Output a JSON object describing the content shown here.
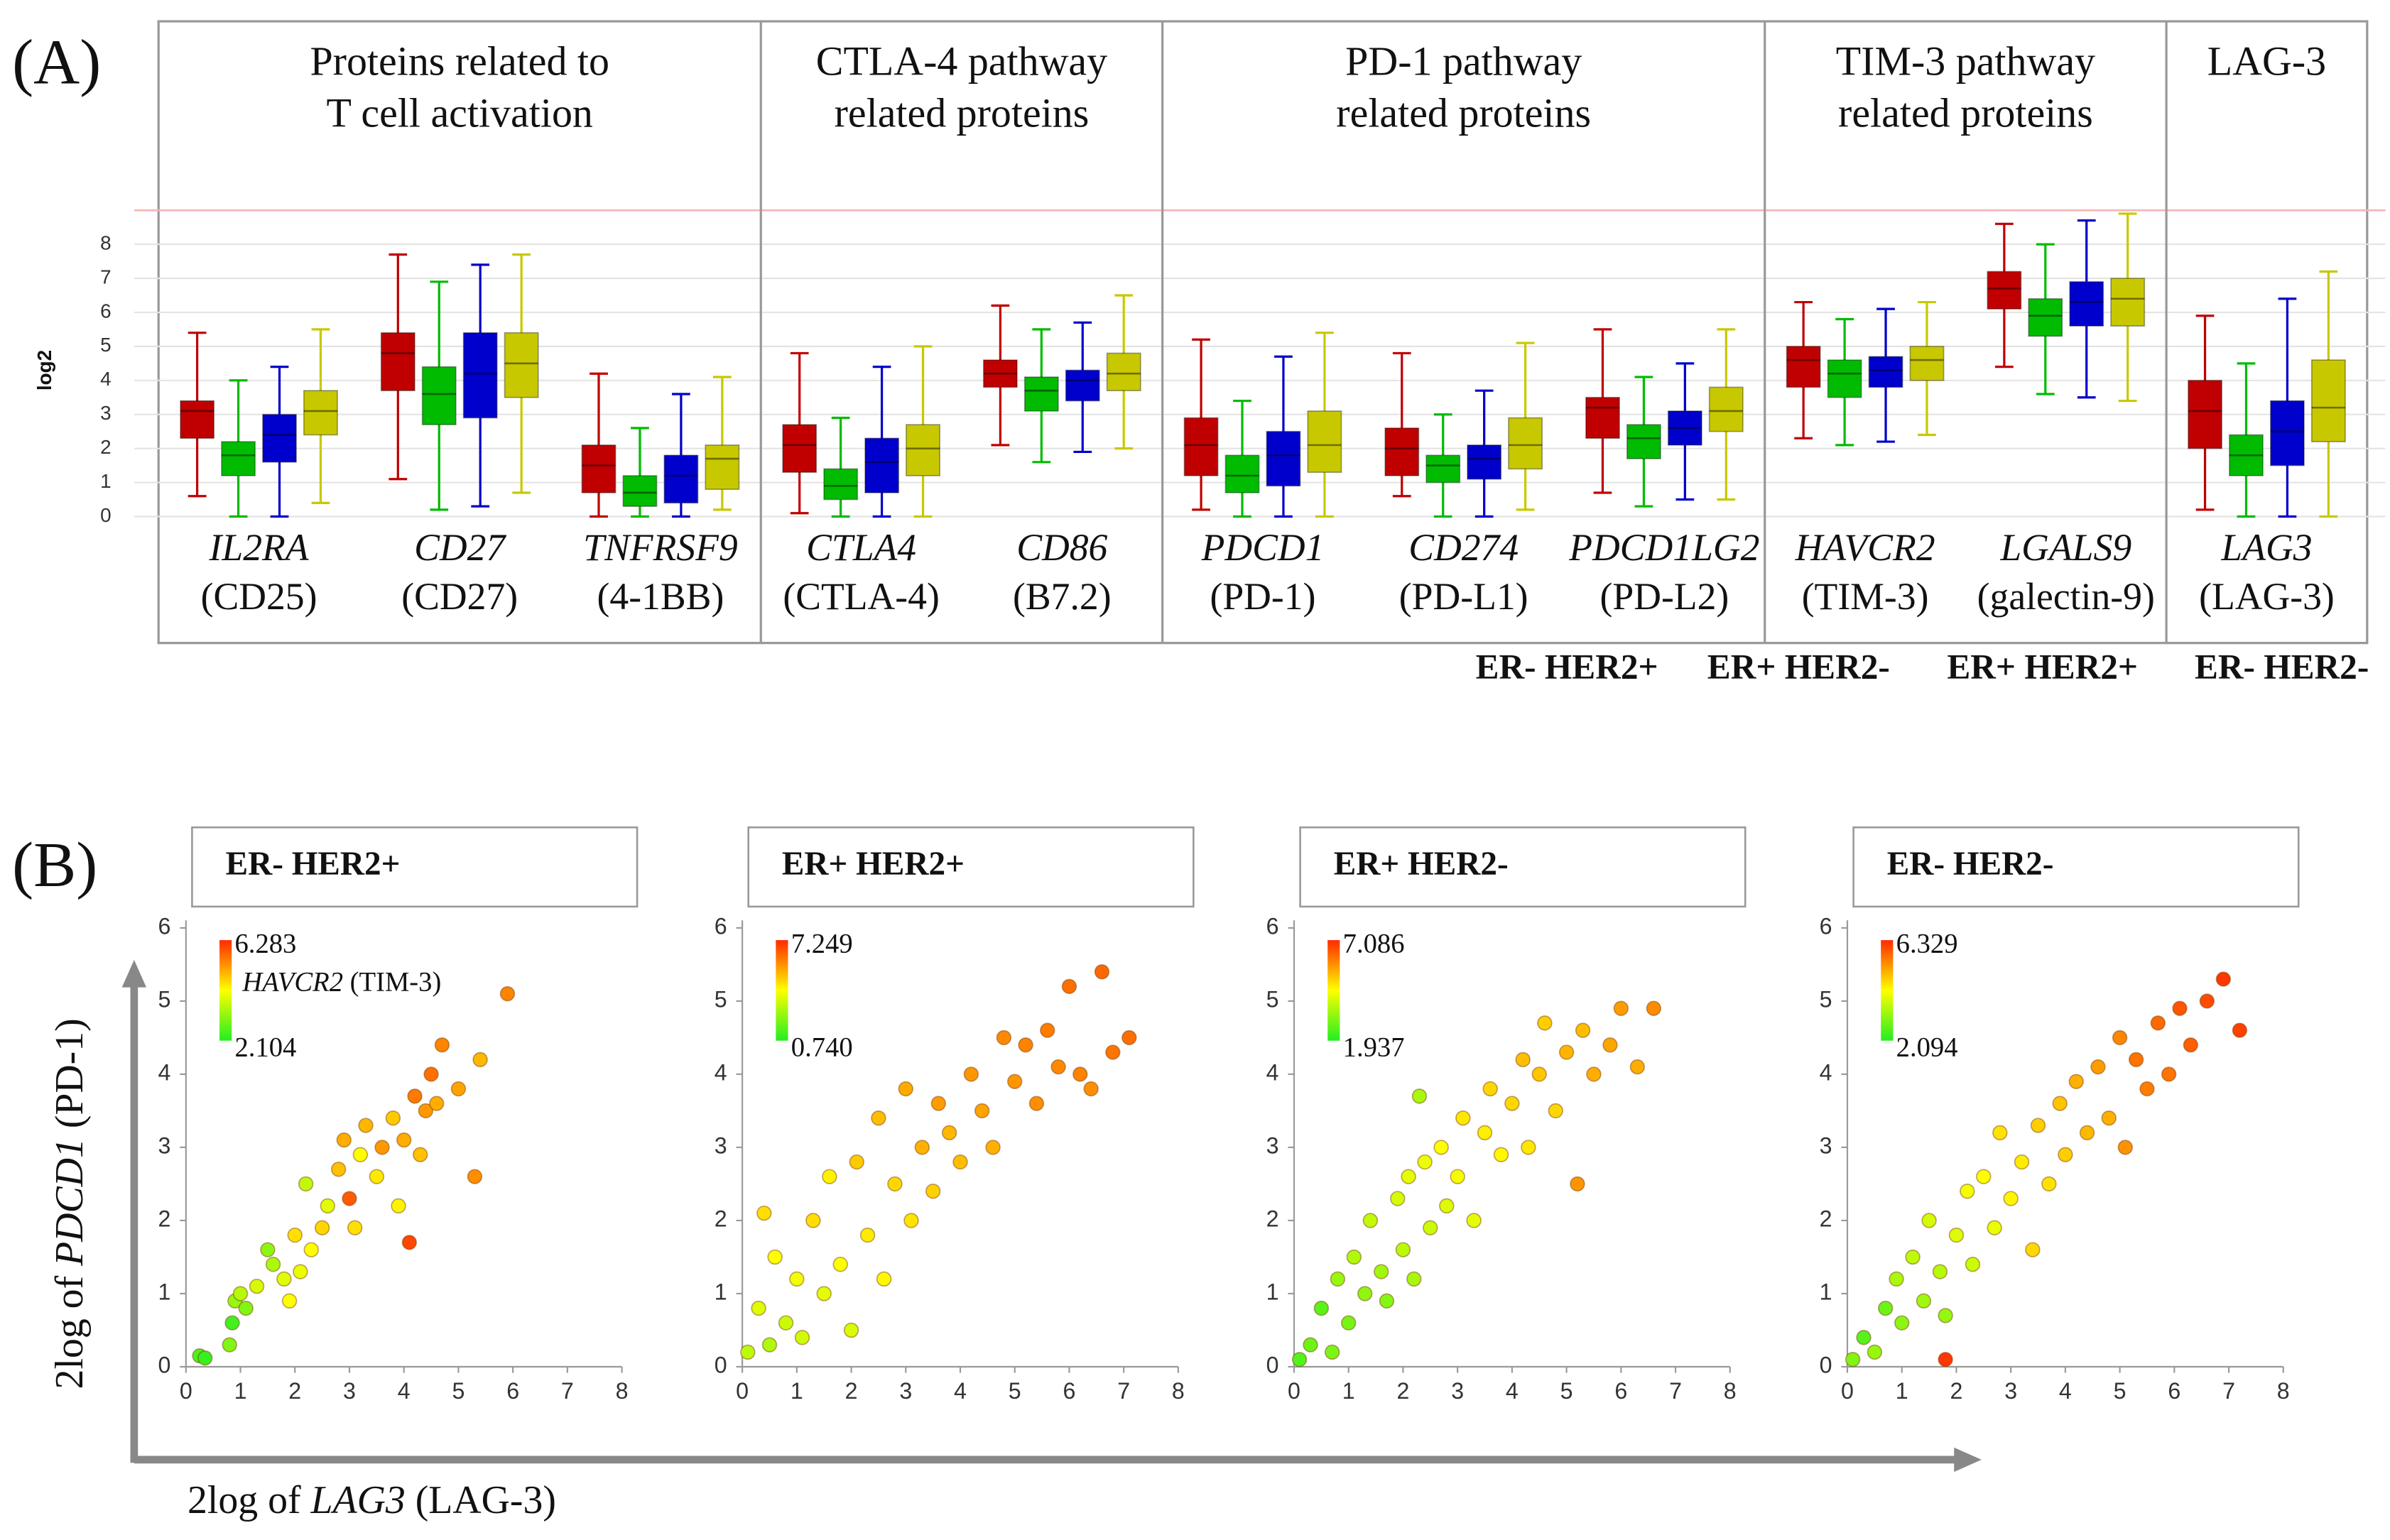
{
  "panel_labels": [
    "(A)",
    "(B)"
  ],
  "shared_axes": {
    "y_label": [
      "2log of ",
      "PDCD1",
      " (PD-1)"
    ],
    "x_label": [
      "2log of ",
      "LAG3",
      " (LAG-3)"
    ]
  },
  "chart_data": [
    {
      "type": "box",
      "y_label": "log2",
      "ylim": [
        0,
        9
      ],
      "yticks": [
        0,
        1,
        2,
        3,
        4,
        5,
        6,
        7,
        8
      ],
      "grid": true,
      "groups": [
        {
          "title": [
            "Proteins related to",
            "T cell activation"
          ],
          "genes": [
            "IL2RA",
            "CD27",
            "TNFRSF9"
          ],
          "proteins": [
            "(CD25)",
            "(CD27)",
            "(4-1BB)"
          ]
        },
        {
          "title": [
            "CTLA-4 pathway",
            "related proteins"
          ],
          "genes": [
            "CTLA4",
            "CD86"
          ],
          "proteins": [
            "(CTLA-4)",
            "(B7.2)"
          ]
        },
        {
          "title": [
            "PD-1 pathway",
            "related proteins"
          ],
          "genes": [
            "PDCD1",
            "CD274",
            "PDCD1LG2"
          ],
          "proteins": [
            "(PD-1)",
            "(PD-L1)",
            "(PD-L2)"
          ]
        },
        {
          "title": [
            "TIM-3 pathway",
            "related proteins"
          ],
          "genes": [
            "HAVCR2",
            "LGALS9"
          ],
          "proteins": [
            "(TIM-3)",
            "(galectin-9)"
          ]
        },
        {
          "title": [
            "LAG-3"
          ],
          "genes": [
            "LAG3"
          ],
          "proteins": [
            "(LAG-3)"
          ]
        }
      ],
      "series": [
        {
          "name": "ER- HER2+",
          "color": "#c00000",
          "values": [
            [
              0.6,
              2.3,
              3.1,
              3.4,
              5.4
            ],
            [
              1.1,
              3.7,
              4.8,
              5.4,
              7.7
            ],
            [
              0,
              0.7,
              1.5,
              2.1,
              4.2
            ],
            [
              0.1,
              1.3,
              2.1,
              2.7,
              4.8
            ],
            [
              2.1,
              3.8,
              4.2,
              4.6,
              6.2
            ],
            [
              0.2,
              1.2,
              2.1,
              2.9,
              5.2
            ],
            [
              0.6,
              1.2,
              2.0,
              2.6,
              4.8
            ],
            [
              0.7,
              2.3,
              3.2,
              3.5,
              5.5
            ],
            [
              2.3,
              3.8,
              4.6,
              5.0,
              6.3
            ],
            [
              4.4,
              6.1,
              6.7,
              7.2,
              8.6
            ],
            [
              0.2,
              2.0,
              3.1,
              4.0,
              5.9
            ]
          ]
        },
        {
          "name": "ER+ HER2-",
          "color": "#00bb00",
          "values": [
            [
              0,
              1.2,
              1.8,
              2.2,
              4.0
            ],
            [
              0.2,
              2.7,
              3.6,
              4.4,
              6.9
            ],
            [
              0,
              0.3,
              0.7,
              1.2,
              2.6
            ],
            [
              0,
              0.5,
              0.9,
              1.4,
              2.9
            ],
            [
              1.6,
              3.1,
              3.7,
              4.1,
              5.5
            ],
            [
              0,
              0.7,
              1.2,
              1.8,
              3.4
            ],
            [
              0,
              1.0,
              1.5,
              1.8,
              3.0
            ],
            [
              0.3,
              1.7,
              2.3,
              2.7,
              4.1
            ],
            [
              2.1,
              3.5,
              4.2,
              4.6,
              5.8
            ],
            [
              3.6,
              5.3,
              5.9,
              6.4,
              8.0
            ],
            [
              0,
              1.2,
              1.8,
              2.4,
              4.5
            ]
          ]
        },
        {
          "name": "ER+ HER2+",
          "color": "#0000cc",
          "values": [
            [
              0,
              1.6,
              2.4,
              3.0,
              4.4
            ],
            [
              0.3,
              2.9,
              4.2,
              5.4,
              7.4
            ],
            [
              0,
              0.4,
              1.2,
              1.8,
              3.6
            ],
            [
              0,
              0.7,
              1.6,
              2.3,
              4.4
            ],
            [
              1.9,
              3.4,
              4.0,
              4.3,
              5.7
            ],
            [
              0,
              0.9,
              1.8,
              2.5,
              4.7
            ],
            [
              0,
              1.1,
              1.7,
              2.1,
              3.7
            ],
            [
              0.5,
              2.1,
              2.6,
              3.1,
              4.5
            ],
            [
              2.2,
              3.8,
              4.3,
              4.7,
              6.1
            ],
            [
              3.5,
              5.6,
              6.3,
              6.9,
              8.7
            ],
            [
              0,
              1.5,
              2.5,
              3.4,
              6.4
            ]
          ]
        },
        {
          "name": "ER- HER2-",
          "color": "#c8c800",
          "values": [
            [
              0.4,
              2.4,
              3.1,
              3.7,
              5.5
            ],
            [
              0.7,
              3.5,
              4.5,
              5.4,
              7.7
            ],
            [
              0.2,
              0.8,
              1.7,
              2.1,
              4.1
            ],
            [
              0,
              1.2,
              2.0,
              2.7,
              5.0
            ],
            [
              2.0,
              3.7,
              4.2,
              4.8,
              6.5
            ],
            [
              0,
              1.3,
              2.1,
              3.1,
              5.4
            ],
            [
              0.2,
              1.4,
              2.1,
              2.9,
              5.1
            ],
            [
              0.5,
              2.5,
              3.1,
              3.8,
              5.5
            ],
            [
              2.4,
              4.0,
              4.6,
              5.0,
              6.3
            ],
            [
              3.4,
              5.6,
              6.4,
              7.0,
              8.9
            ],
            [
              0,
              2.2,
              3.2,
              4.6,
              7.2
            ]
          ]
        }
      ]
    },
    {
      "type": "scatter",
      "title": "ER- HER2+",
      "xlim": [
        0,
        8
      ],
      "xticks": [
        0,
        1,
        2,
        3,
        4,
        5,
        6,
        7,
        8
      ],
      "ylim": [
        0,
        6
      ],
      "yticks": [
        0,
        1,
        2,
        3,
        4,
        5,
        6
      ],
      "colormap": [
        "#22ee22",
        "#ffff00",
        "#ff2a00"
      ],
      "colorbar": {
        "max": 6.283,
        "min": 2.104
      },
      "colorbar_label": [
        "HAVCR2",
        " (TIM-3)"
      ],
      "x": [
        0.25,
        0.35,
        0.8,
        0.85,
        0.9,
        1.0,
        1.1,
        1.3,
        1.5,
        1.6,
        1.8,
        1.9,
        2.0,
        2.1,
        2.2,
        2.3,
        2.5,
        2.6,
        2.8,
        2.9,
        3.0,
        3.1,
        3.2,
        3.3,
        3.5,
        3.6,
        3.8,
        3.9,
        4.0,
        4.1,
        4.2,
        4.3,
        4.4,
        4.5,
        4.6,
        4.7,
        5.0,
        5.3,
        5.4,
        5.9
      ],
      "y": [
        0.15,
        0.12,
        0.3,
        0.6,
        0.9,
        1.0,
        0.8,
        1.1,
        1.6,
        1.4,
        1.2,
        0.9,
        1.8,
        1.3,
        2.5,
        1.6,
        1.9,
        2.2,
        2.7,
        3.1,
        2.3,
        1.9,
        2.9,
        3.3,
        2.6,
        3.0,
        3.4,
        2.2,
        3.1,
        1.7,
        3.7,
        2.9,
        3.5,
        4.0,
        3.6,
        4.4,
        3.8,
        2.6,
        4.2,
        5.1
      ],
      "color_values": [
        2.5,
        2.3,
        3.0,
        2.4,
        3.2,
        3.5,
        3.0,
        3.8,
        3.1,
        3.4,
        3.9,
        4.2,
        4.5,
        4.0,
        3.6,
        4.2,
        4.6,
        3.9,
        4.8,
        5.0,
        5.8,
        4.5,
        4.2,
        4.9,
        4.4,
        5.2,
        4.7,
        4.3,
        5.0,
        6.0,
        5.5,
        4.8,
        5.2,
        5.6,
        5.0,
        5.4,
        5.1,
        5.3,
        4.9,
        5.4
      ]
    },
    {
      "type": "scatter",
      "title": "ER+ HER2+",
      "xlim": [
        0,
        8
      ],
      "xticks": [
        0,
        1,
        2,
        3,
        4,
        5,
        6,
        7,
        8
      ],
      "ylim": [
        0,
        6
      ],
      "yticks": [
        0,
        1,
        2,
        3,
        4,
        5,
        6
      ],
      "colormap": [
        "#22ee22",
        "#ffff00",
        "#ff2a00"
      ],
      "colorbar": {
        "max": 7.249,
        "min": {
          "value": 0.74,
          "label": "0.740"
        }
      },
      "x": [
        0.1,
        0.3,
        0.5,
        0.6,
        0.8,
        1.0,
        1.1,
        1.3,
        1.5,
        1.6,
        1.8,
        2.0,
        2.1,
        2.3,
        2.5,
        2.6,
        2.8,
        3.0,
        3.1,
        3.3,
        3.5,
        3.6,
        3.8,
        4.0,
        4.2,
        4.4,
        4.6,
        4.8,
        5.0,
        5.2,
        5.4,
        5.6,
        5.8,
        6.0,
        6.2,
        6.4,
        6.6,
        6.8,
        7.1,
        0.4
      ],
      "y": [
        0.2,
        0.8,
        0.3,
        1.5,
        0.6,
        1.2,
        0.4,
        2.0,
        1.0,
        2.6,
        1.4,
        0.5,
        2.8,
        1.8,
        3.4,
        1.2,
        2.5,
        3.8,
        2.0,
        3.0,
        2.4,
        3.6,
        3.2,
        2.8,
        4.0,
        3.5,
        3.0,
        4.5,
        3.9,
        4.4,
        3.6,
        4.6,
        4.1,
        5.2,
        4.0,
        3.8,
        5.4,
        4.3,
        4.5,
        2.1
      ],
      "color_values": [
        3.0,
        3.5,
        2.8,
        4.0,
        3.2,
        3.8,
        3.3,
        4.5,
        3.6,
        4.2,
        4.0,
        3.4,
        4.8,
        4.3,
        5.0,
        4.1,
        4.6,
        5.3,
        4.4,
        5.2,
        4.7,
        5.5,
        5.1,
        5.0,
        5.6,
        5.4,
        5.2,
        5.8,
        5.6,
        5.9,
        5.7,
        6.0,
        5.8,
        6.2,
        5.9,
        5.7,
        6.3,
        6.1,
        6.2,
        4.5
      ]
    },
    {
      "type": "scatter",
      "title": "ER+ HER2-",
      "xlim": [
        0,
        8
      ],
      "xticks": [
        0,
        1,
        2,
        3,
        4,
        5,
        6,
        7,
        8
      ],
      "ylim": [
        0,
        6
      ],
      "yticks": [
        0,
        1,
        2,
        3,
        4,
        5,
        6
      ],
      "colormap": [
        "#22ee22",
        "#ffff00",
        "#ff2a00"
      ],
      "colorbar": {
        "max": 7.086,
        "min": 1.937
      },
      "x": [
        0.1,
        0.3,
        0.5,
        0.7,
        0.8,
        1.0,
        1.1,
        1.3,
        1.4,
        1.6,
        1.7,
        1.9,
        2.0,
        2.1,
        2.2,
        2.4,
        2.5,
        2.7,
        2.8,
        3.0,
        3.1,
        3.3,
        3.5,
        3.6,
        3.8,
        4.0,
        4.2,
        4.3,
        4.5,
        4.6,
        4.8,
        5.0,
        5.2,
        5.3,
        5.5,
        5.8,
        6.0,
        6.3,
        6.6,
        2.3
      ],
      "y": [
        0.1,
        0.3,
        0.8,
        0.2,
        1.2,
        0.6,
        1.5,
        1.0,
        2.0,
        1.3,
        0.9,
        2.3,
        1.6,
        2.6,
        1.2,
        2.8,
        1.9,
        3.0,
        2.2,
        2.6,
        3.4,
        2.0,
        3.2,
        3.8,
        2.9,
        3.6,
        4.2,
        3.0,
        4.0,
        4.7,
        3.5,
        4.3,
        2.5,
        4.6,
        4.0,
        4.4,
        4.9,
        4.1,
        4.9,
        3.7
      ],
      "color_values": [
        2.5,
        2.8,
        2.6,
        3.0,
        3.3,
        2.9,
        3.6,
        3.2,
        3.8,
        3.4,
        3.1,
        4.0,
        3.7,
        4.2,
        3.5,
        4.3,
        3.9,
        4.5,
        4.1,
        4.4,
        4.8,
        4.2,
        4.7,
        5.0,
        4.6,
        5.0,
        5.3,
        4.8,
        5.2,
        5.1,
        5.0,
        5.4,
        5.8,
        5.3,
        5.5,
        5.6,
        5.7,
        5.5,
        5.9,
        3.5
      ]
    },
    {
      "type": "scatter",
      "title": "ER- HER2-",
      "xlim": [
        0,
        8
      ],
      "xticks": [
        0,
        1,
        2,
        3,
        4,
        5,
        6,
        7,
        8
      ],
      "ylim": [
        0,
        6
      ],
      "yticks": [
        0,
        1,
        2,
        3,
        4,
        5,
        6
      ],
      "colormap": [
        "#22ee22",
        "#ffff00",
        "#ff2a00"
      ],
      "colorbar": {
        "max": 6.329,
        "min": 2.094
      },
      "x": [
        0.1,
        0.3,
        0.5,
        0.7,
        0.9,
        1.0,
        1.2,
        1.4,
        1.5,
        1.7,
        1.8,
        2.0,
        2.2,
        2.3,
        2.5,
        2.7,
        2.8,
        3.0,
        3.2,
        3.4,
        3.5,
        3.7,
        3.9,
        4.0,
        4.2,
        4.4,
        4.6,
        4.8,
        5.0,
        5.1,
        5.3,
        5.5,
        5.7,
        5.9,
        6.1,
        6.3,
        6.6,
        6.9,
        7.2,
        1.8
      ],
      "y": [
        0.1,
        0.4,
        0.2,
        0.8,
        1.2,
        0.6,
        1.5,
        0.9,
        2.0,
        1.3,
        0.7,
        1.8,
        2.4,
        1.4,
        2.6,
        1.9,
        3.2,
        2.3,
        2.8,
        1.6,
        3.3,
        2.5,
        3.6,
        2.9,
        3.9,
        3.2,
        4.1,
        3.4,
        4.5,
        3.0,
        4.2,
        3.8,
        4.7,
        4.0,
        4.9,
        4.4,
        5.0,
        5.3,
        4.6,
        0.1
      ],
      "color_values": [
        3.0,
        2.6,
        3.2,
        2.8,
        3.4,
        3.1,
        3.6,
        3.3,
        3.8,
        3.5,
        3.2,
        3.9,
        4.1,
        3.7,
        4.2,
        4.0,
        4.5,
        4.3,
        4.4,
        4.6,
        4.7,
        4.5,
        4.8,
        4.7,
        5.0,
        4.9,
        5.2,
        5.0,
        5.4,
        5.3,
        5.6,
        5.5,
        5.7,
        5.6,
        5.9,
        5.8,
        6.0,
        6.2,
        6.1,
        6.2
      ]
    }
  ]
}
